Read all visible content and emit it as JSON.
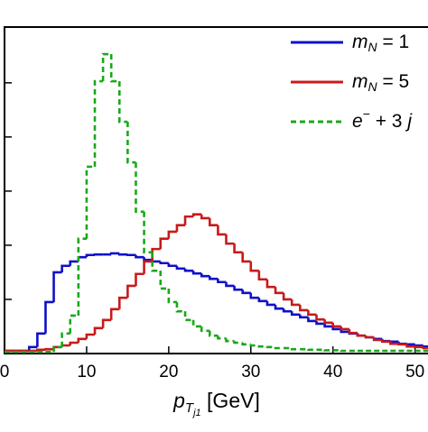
{
  "chart_data": {
    "type": "histogram",
    "x_label": [
      "p",
      "T",
      "j1",
      " [GeV]"
    ],
    "bins": [
      0,
      1,
      2,
      3,
      4,
      5,
      6,
      7,
      8,
      9,
      10,
      11,
      12,
      13,
      14,
      15,
      16,
      17,
      18,
      19,
      20,
      21,
      22,
      23,
      24,
      25,
      26,
      27,
      28,
      29,
      30,
      31,
      32,
      33,
      34,
      35,
      36,
      37,
      38,
      39,
      40,
      41,
      42,
      43,
      44,
      45,
      46,
      47,
      48,
      49,
      50,
      51,
      52
    ],
    "xlim": [
      0,
      51.8
    ],
    "xticks": [
      0,
      10,
      20,
      30,
      40,
      50
    ],
    "ylim": [
      0,
      6.03
    ],
    "yticks": [
      0,
      1,
      2,
      3,
      4,
      5
    ],
    "series": [
      {
        "name": [
          "m",
          "N",
          " = 1"
        ],
        "color": "#1010c8",
        "style": "solid",
        "values": [
          0.05,
          0.05,
          0.05,
          0.12,
          0.37,
          0.95,
          1.5,
          1.62,
          1.7,
          1.78,
          1.82,
          1.83,
          1.83,
          1.85,
          1.83,
          1.82,
          1.78,
          1.73,
          1.7,
          1.67,
          1.62,
          1.57,
          1.53,
          1.48,
          1.43,
          1.38,
          1.32,
          1.25,
          1.18,
          1.12,
          1.03,
          0.97,
          0.9,
          0.83,
          0.78,
          0.72,
          0.67,
          0.6,
          0.55,
          0.5,
          0.45,
          0.4,
          0.37,
          0.33,
          0.3,
          0.27,
          0.23,
          0.22,
          0.18,
          0.17,
          0.15,
          0.13
        ]
      },
      {
        "name": [
          "m",
          "N",
          " = 5"
        ],
        "color": "#c81a1a",
        "style": "solid",
        "values": [
          0.05,
          0.05,
          0.05,
          0.05,
          0.07,
          0.08,
          0.12,
          0.15,
          0.2,
          0.27,
          0.35,
          0.47,
          0.62,
          0.82,
          1.03,
          1.25,
          1.47,
          1.7,
          1.93,
          2.12,
          2.25,
          2.37,
          2.53,
          2.57,
          2.5,
          2.37,
          2.2,
          2.03,
          1.87,
          1.7,
          1.53,
          1.37,
          1.23,
          1.12,
          1.0,
          0.9,
          0.8,
          0.72,
          0.63,
          0.57,
          0.5,
          0.45,
          0.38,
          0.33,
          0.3,
          0.25,
          0.22,
          0.18,
          0.17,
          0.13,
          0.12,
          0.1
        ]
      },
      {
        "name": [
          "e",
          "−",
          " + 3 ",
          "j"
        ],
        "color": "#1aa81a",
        "style": "dashed",
        "values": [
          0.03,
          0.03,
          0.03,
          0.03,
          0.03,
          0.03,
          0.12,
          0.37,
          0.7,
          2.12,
          3.45,
          5.03,
          5.53,
          5.03,
          4.28,
          3.53,
          2.62,
          1.87,
          1.53,
          1.2,
          0.95,
          0.78,
          0.62,
          0.5,
          0.42,
          0.33,
          0.28,
          0.23,
          0.2,
          0.17,
          0.15,
          0.13,
          0.12,
          0.1,
          0.1,
          0.08,
          0.08,
          0.07,
          0.07,
          0.06,
          0.06,
          0.05,
          0.05,
          0.05,
          0.05,
          0.05,
          0.05,
          0.05,
          0.05,
          0.05,
          0.05,
          0.05
        ]
      }
    ]
  }
}
